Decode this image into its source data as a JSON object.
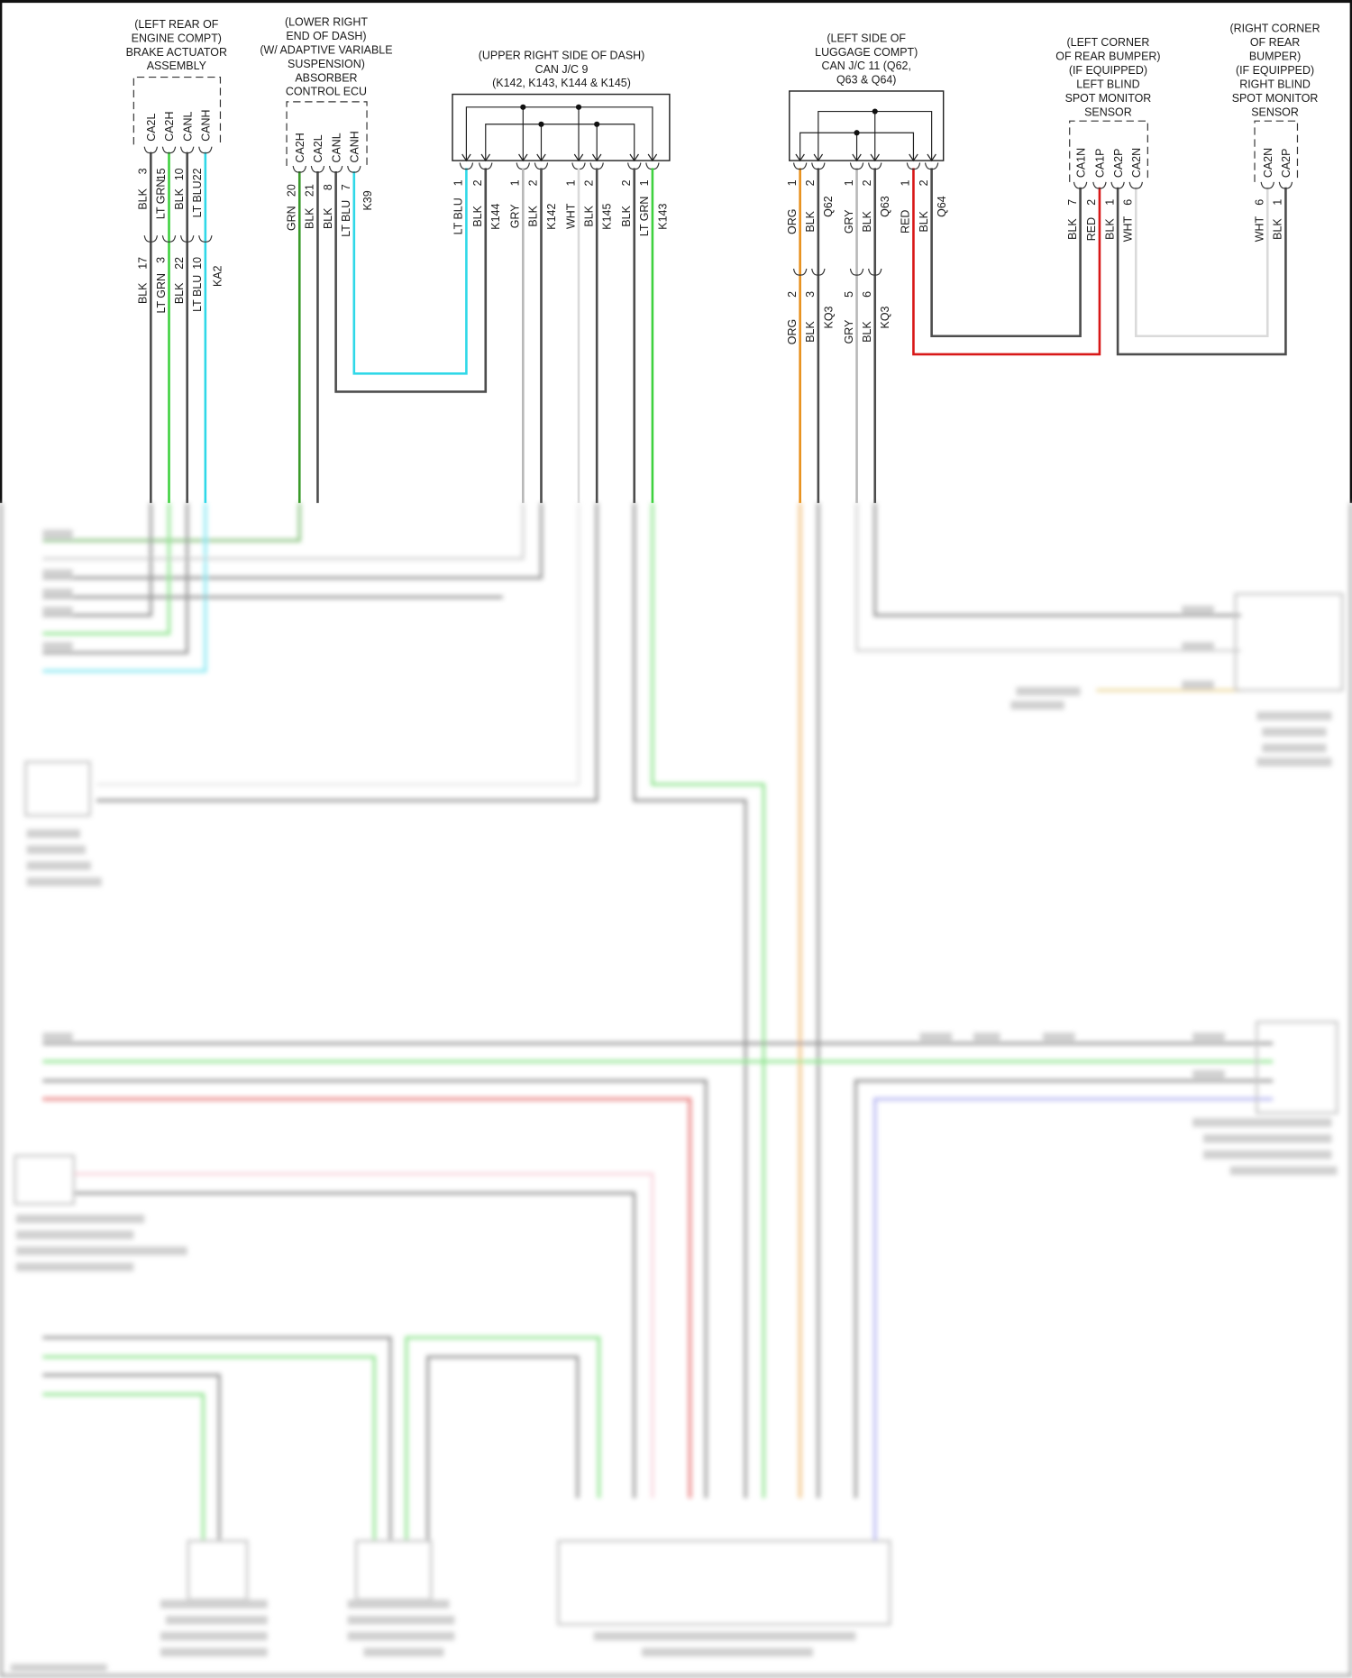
{
  "diagram": {
    "brake_actuator": {
      "title_lines": [
        "(LEFT REAR OF",
        "ENGINE COMPT)",
        "BRAKE ACTUATOR",
        "ASSEMBLY"
      ],
      "pins": [
        "CA2L",
        "CA2H",
        "CANL",
        "CANH"
      ],
      "pin_numbers": [
        "3",
        "15",
        "10",
        "22"
      ],
      "wire_colors": [
        "BLK",
        "LT GRN",
        "BLK",
        "LT BLU"
      ]
    },
    "ka2": {
      "name": "KA2",
      "pin_numbers": [
        "17",
        "3",
        "22",
        "10"
      ],
      "wire_colors": [
        "BLK",
        "LT GRN",
        "BLK",
        "LT BLU"
      ]
    },
    "absorber_ecu": {
      "title_lines": [
        "(LOWER RIGHT",
        "END OF DASH)",
        "(W/ ADAPTIVE VARIABLE",
        "SUSPENSION)",
        "ABSORBER",
        "CONTROL ECU"
      ],
      "connector": "K39",
      "pins": [
        "CA2H",
        "CA2L",
        "CANL",
        "CANH"
      ],
      "pin_numbers": [
        "20",
        "21",
        "8",
        "7"
      ],
      "wire_colors": [
        "GRN",
        "BLK",
        "BLK",
        "LT BLU"
      ]
    },
    "can_jc9": {
      "title_lines": [
        "(UPPER RIGHT SIDE OF DASH)",
        "CAN J/C 9",
        "(K142, K143, K144 & K145)"
      ],
      "connectors": [
        {
          "name": "K144",
          "pin_numbers": [
            "1",
            "2"
          ],
          "wire_colors": [
            "LT BLU",
            "BLK"
          ]
        },
        {
          "name": "K142",
          "pin_numbers": [
            "1",
            "2"
          ],
          "wire_colors": [
            "GRY",
            "BLK"
          ]
        },
        {
          "name": "K145",
          "pin_numbers": [
            "1",
            "2"
          ],
          "wire_colors": [
            "WHT",
            "BLK"
          ]
        },
        {
          "name": "K143",
          "pin_numbers": [
            "2",
            "1"
          ],
          "wire_colors": [
            "BLK",
            "LT GRN"
          ]
        }
      ]
    },
    "can_jc11": {
      "title_lines": [
        "(LEFT SIDE OF",
        "LUGGAGE COMPT)",
        "CAN J/C 11 (Q62,",
        "Q63 & Q64)"
      ],
      "connectors": [
        {
          "name": "Q62",
          "pin_numbers": [
            "1",
            "2"
          ],
          "wire_colors": [
            "ORG",
            "BLK"
          ]
        },
        {
          "name": "Q63",
          "pin_numbers": [
            "1",
            "2"
          ],
          "wire_colors": [
            "GRY",
            "BLK"
          ]
        },
        {
          "name": "Q64",
          "pin_numbers": [
            "1",
            "2"
          ],
          "wire_colors": [
            "RED",
            "BLK"
          ]
        }
      ]
    },
    "kq3": {
      "name": "KQ3",
      "groups": [
        {
          "pin_numbers": [
            "2",
            "3"
          ],
          "wire_colors": [
            "ORG",
            "BLK"
          ]
        },
        {
          "pin_numbers": [
            "5",
            "6"
          ],
          "wire_colors": [
            "GRY",
            "BLK"
          ]
        }
      ]
    },
    "left_bsm": {
      "title_lines": [
        "(LEFT CORNER",
        "OF REAR BUMPER)",
        "(IF EQUIPPED)",
        "LEFT BLIND",
        "SPOT MONITOR",
        "SENSOR"
      ],
      "pins": [
        "CA1N",
        "CA1P",
        "CA2P",
        "CA2N"
      ],
      "pin_numbers": [
        "7",
        "2",
        "1",
        "6"
      ],
      "wire_colors": [
        "BLK",
        "RED",
        "BLK",
        "WHT"
      ]
    },
    "right_bsm": {
      "title_lines": [
        "(RIGHT CORNER",
        "OF REAR",
        "BUMPER)",
        "(IF EQUIPPED)",
        "RIGHT BLIND",
        "SPOT MONITOR",
        "SENSOR"
      ],
      "pins": [
        "CA2N",
        "CA2P"
      ],
      "pin_numbers": [
        "6",
        "1"
      ],
      "wire_colors": [
        "WHT",
        "BLK"
      ]
    }
  },
  "wire_color_codes": {
    "BLK": "#4d4d4d",
    "LT GRN": "#3fd13f",
    "GRN": "#3a9a2a",
    "LT BLU": "#30d8e8",
    "GRY": "#b8b8b8",
    "WHT": "#dadada",
    "ORG": "#e8901c",
    "RED": "#d81818",
    "PNK": "#f4b6c4",
    "VIO": "#8080e8"
  }
}
